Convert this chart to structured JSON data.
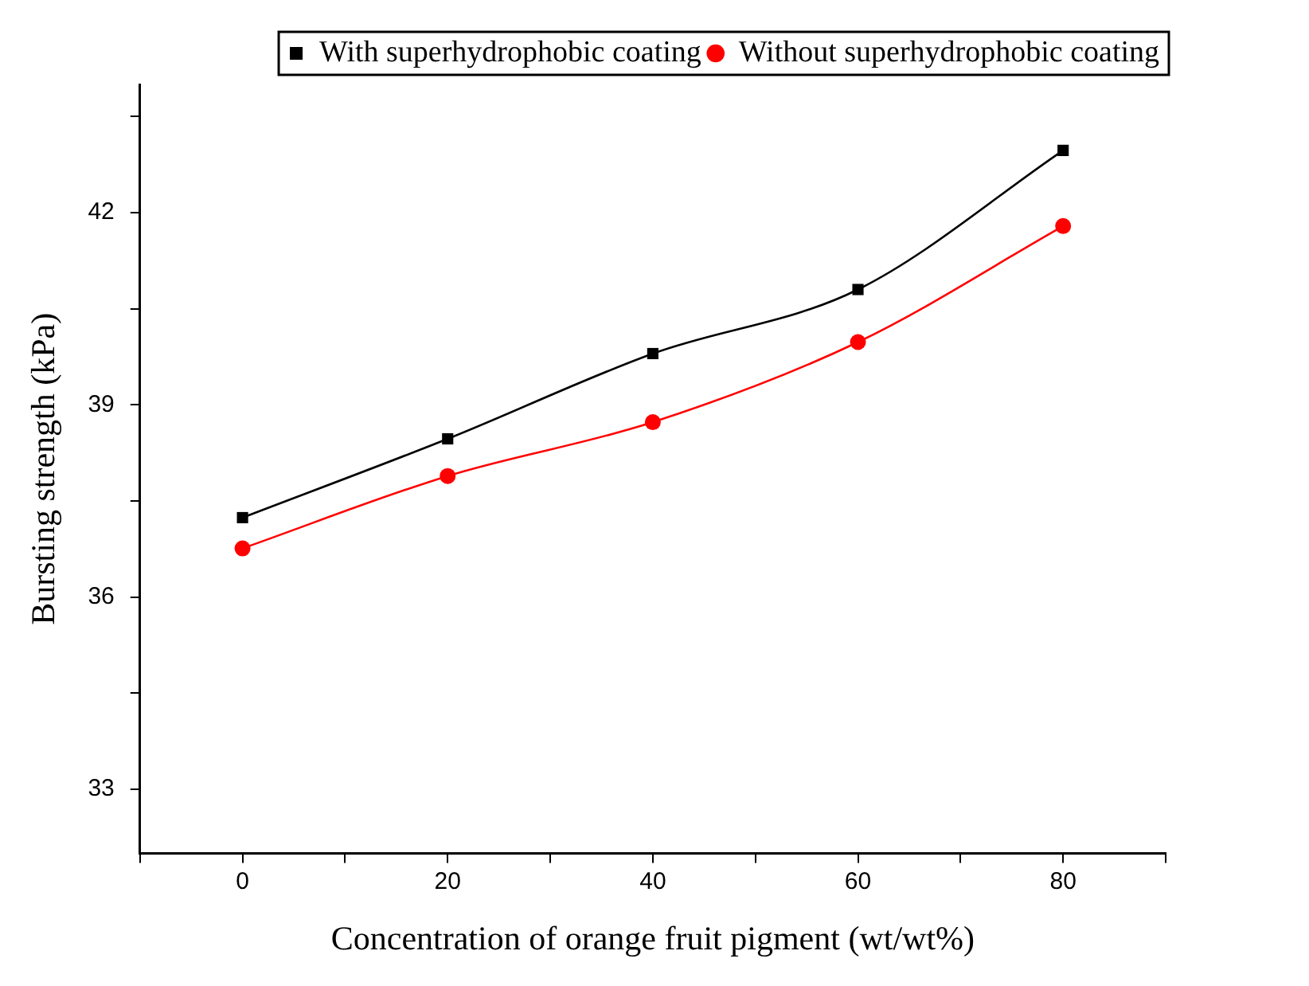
{
  "chart_data": {
    "type": "line",
    "xlabel": "Concentration of orange fruit pigment (wt/wt%)",
    "ylabel": "Bursting strength (kPa)",
    "x": [
      0,
      20,
      40,
      60,
      80
    ],
    "series": [
      {
        "name": "With superhydrophobic coating",
        "color": "#000000",
        "marker": "square",
        "values": [
          37.24,
          38.47,
          39.8,
          40.8,
          42.97
        ]
      },
      {
        "name": "Without superhydrophobic coating",
        "color": "#ff0000",
        "marker": "circle",
        "values": [
          36.76,
          37.89,
          38.73,
          39.98,
          41.79
        ]
      }
    ],
    "xlim": [
      -10,
      90
    ],
    "xticks": [
      {
        "value": -10,
        "label": null
      },
      0,
      {
        "value": 10,
        "label": null
      },
      20,
      {
        "value": 30,
        "label": null
      },
      40,
      {
        "value": 50,
        "label": null
      },
      60,
      {
        "value": 70,
        "label": null
      },
      80,
      {
        "value": 90,
        "label": null
      }
    ],
    "ylim": [
      32,
      44
    ],
    "yticks": [
      33,
      {
        "value": 34.5,
        "label": null
      },
      36,
      {
        "value": 37.5,
        "label": null
      },
      39,
      {
        "value": 40.5,
        "label": null
      },
      42,
      {
        "value": 43.5,
        "label": null
      }
    ],
    "grid": false,
    "legend": "top right",
    "line_style": "solid"
  }
}
